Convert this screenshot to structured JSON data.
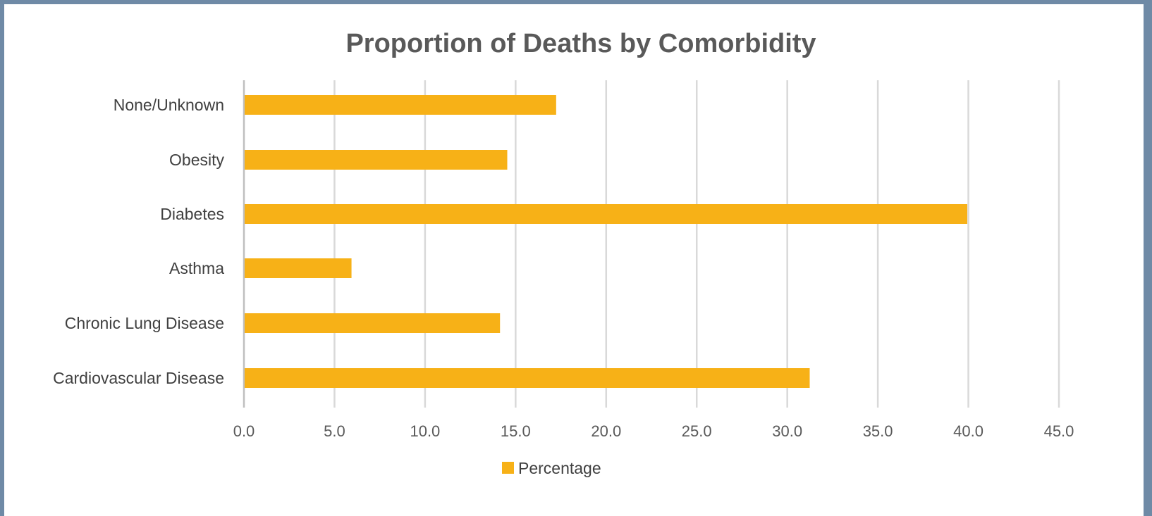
{
  "chart_data": {
    "type": "bar",
    "orientation": "horizontal",
    "title": "Proportion of Deaths by Comorbidity",
    "categories": [
      "Cardiovascular Disease",
      "Chronic Lung Disease",
      "Asthma",
      "Diabetes",
      "Obesity",
      "None/Unknown"
    ],
    "series": [
      {
        "name": "Percentage",
        "values": [
          31.2,
          14.1,
          5.9,
          39.9,
          14.5,
          17.2
        ],
        "color": "#f7b117"
      }
    ],
    "xlim": [
      0,
      45
    ],
    "xticks": [
      "0.0",
      "5.0",
      "10.0",
      "15.0",
      "20.0",
      "25.0",
      "30.0",
      "35.0",
      "40.0",
      "45.0"
    ],
    "grid": "vertical",
    "legend_position": "bottom"
  }
}
